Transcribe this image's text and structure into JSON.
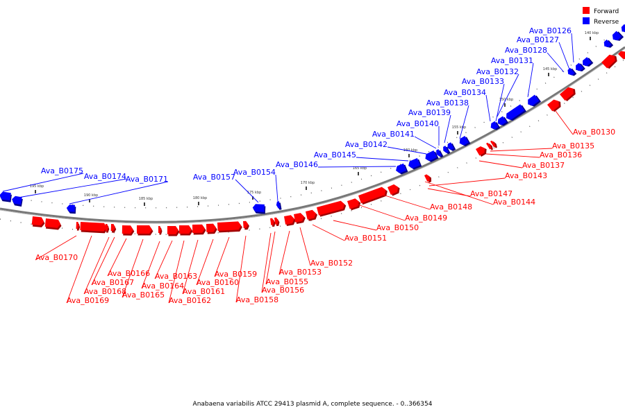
{
  "caption": "Anabaena variabilis ATCC 29413 plasmid A, complete sequence. - 0..366354",
  "legend": [
    {
      "label": "Forward",
      "color": "#ff0000"
    },
    {
      "label": "Reverse",
      "color": "#0000ff"
    }
  ],
  "colors": {
    "forward": "#ff0000",
    "forward_dark": "#a00000",
    "reverse": "#0000ff",
    "reverse_dark": "#00008a",
    "backbone": "#777777"
  },
  "kbp_ticks": [
    "140 kbp",
    "145 kbp",
    "150 kbp",
    "155 kbp",
    "160 kbp",
    "165 kbp",
    "170 kbp",
    "175 kbp",
    "180 kbp",
    "185 kbp",
    "190 kbp",
    "195 kbp"
  ],
  "reverse_genes": [
    "Ava_B0126",
    "Ava_B0127",
    "Ava_B0128",
    "Ava_B0131",
    "Ava_B0132",
    "Ava_B0133",
    "Ava_B0134",
    "Ava_B0138",
    "Ava_B0139",
    "Ava_B0140",
    "Ava_B0141",
    "Ava_B0142",
    "Ava_B0145",
    "Ava_B0146",
    "Ava_B0154",
    "Ava_B0157",
    "Ava_B0171",
    "Ava_B0174",
    "Ava_B0175"
  ],
  "forward_genes": [
    "Ava_B0130",
    "Ava_B0135",
    "Ava_B0136",
    "Ava_B0137",
    "Ava_B0143",
    "Ava_B0144",
    "Ava_B0147",
    "Ava_B0148",
    "Ava_B0149",
    "Ava_B0150",
    "Ava_B0151",
    "Ava_B0152",
    "Ava_B0153",
    "Ava_B0155",
    "Ava_B0156",
    "Ava_B0158",
    "Ava_B0159",
    "Ava_B0160",
    "Ava_B0161",
    "Ava_B0162",
    "Ava_B0163",
    "Ava_B0164",
    "Ava_B0165",
    "Ava_B0166",
    "Ava_B0167",
    "Ava_B0168",
    "Ava_B0169",
    "Ava_B0170"
  ]
}
